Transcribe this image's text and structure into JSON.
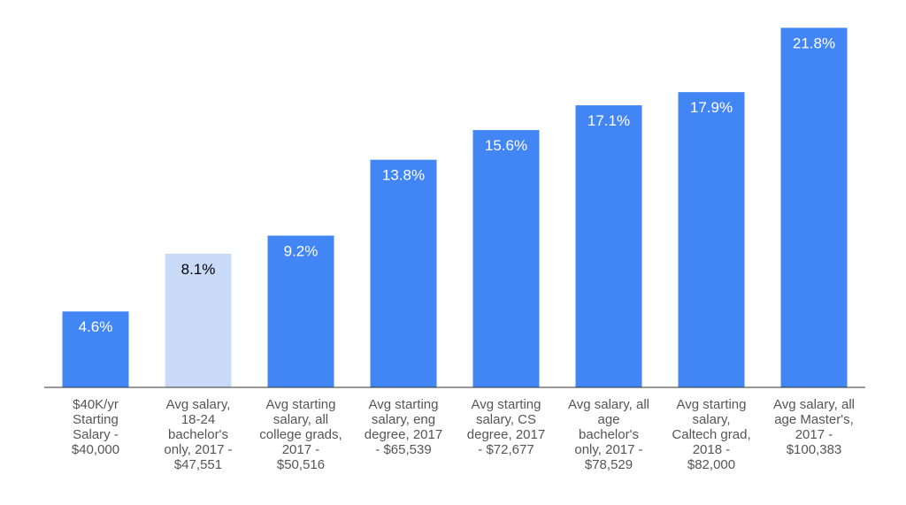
{
  "chart_data": {
    "type": "bar",
    "title": "",
    "xlabel": "",
    "ylabel": "",
    "ylim": [
      0,
      22.5
    ],
    "grid": false,
    "legend": "none",
    "value_format": "percent",
    "categories": [
      [
        "$40K/yr",
        "Starting",
        "Salary -",
        "$40,000"
      ],
      [
        "Avg salary,",
        "18-24",
        "bachelor's",
        "only, 2017 -",
        "$47,551"
      ],
      [
        "Avg starting",
        "salary, all",
        "college grads,",
        "2017 -",
        "$50,516"
      ],
      [
        "Avg starting",
        "salary, eng",
        "degree, 2017",
        "- $65,539"
      ],
      [
        "Avg starting",
        "salary, CS",
        "degree, 2017",
        "- $72,677"
      ],
      [
        "Avg salary, all",
        "age",
        "bachelor's",
        "only, 2017 -",
        "$78,529"
      ],
      [
        "Avg starting",
        "salary,",
        "Caltech grad,",
        "2018 -",
        "$82,000"
      ],
      [
        "Avg salary, all",
        "age Master's,",
        "2017 -",
        "$100,383"
      ]
    ],
    "values": [
      4.6,
      8.1,
      9.2,
      13.8,
      15.6,
      17.1,
      17.9,
      21.8
    ],
    "value_labels": [
      "4.6%",
      "8.1%",
      "9.2%",
      "13.8%",
      "15.6%",
      "17.1%",
      "17.9%",
      "21.8%"
    ],
    "highlight_index": 1,
    "colors": {
      "bar": "#4285f4",
      "bar_highlight": "#c9daf8",
      "label_on_bar": "#ffffff",
      "label_on_highlight": "#000000",
      "axis_line": "#333333",
      "category_text": "#555555"
    }
  }
}
